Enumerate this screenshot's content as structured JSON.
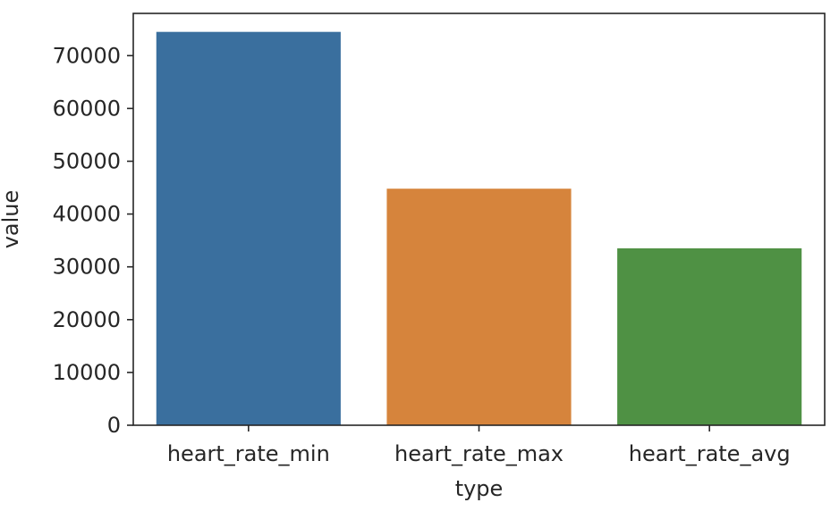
{
  "chart_data": {
    "type": "bar",
    "title": "",
    "xlabel": "type",
    "ylabel": "value",
    "categories": [
      "heart_rate_min",
      "heart_rate_max",
      "heart_rate_avg"
    ],
    "values": [
      74500,
      44800,
      33500
    ],
    "colors": [
      "#3a6f9e",
      "#d6843c",
      "#4f9144"
    ],
    "ylim": [
      0,
      78000
    ],
    "yticks": [
      0,
      10000,
      20000,
      30000,
      40000,
      50000,
      60000,
      70000
    ],
    "ytick_labels": [
      "0",
      "10000",
      "20000",
      "30000",
      "40000",
      "50000",
      "60000",
      "70000"
    ],
    "grid": false,
    "legend": false
  }
}
